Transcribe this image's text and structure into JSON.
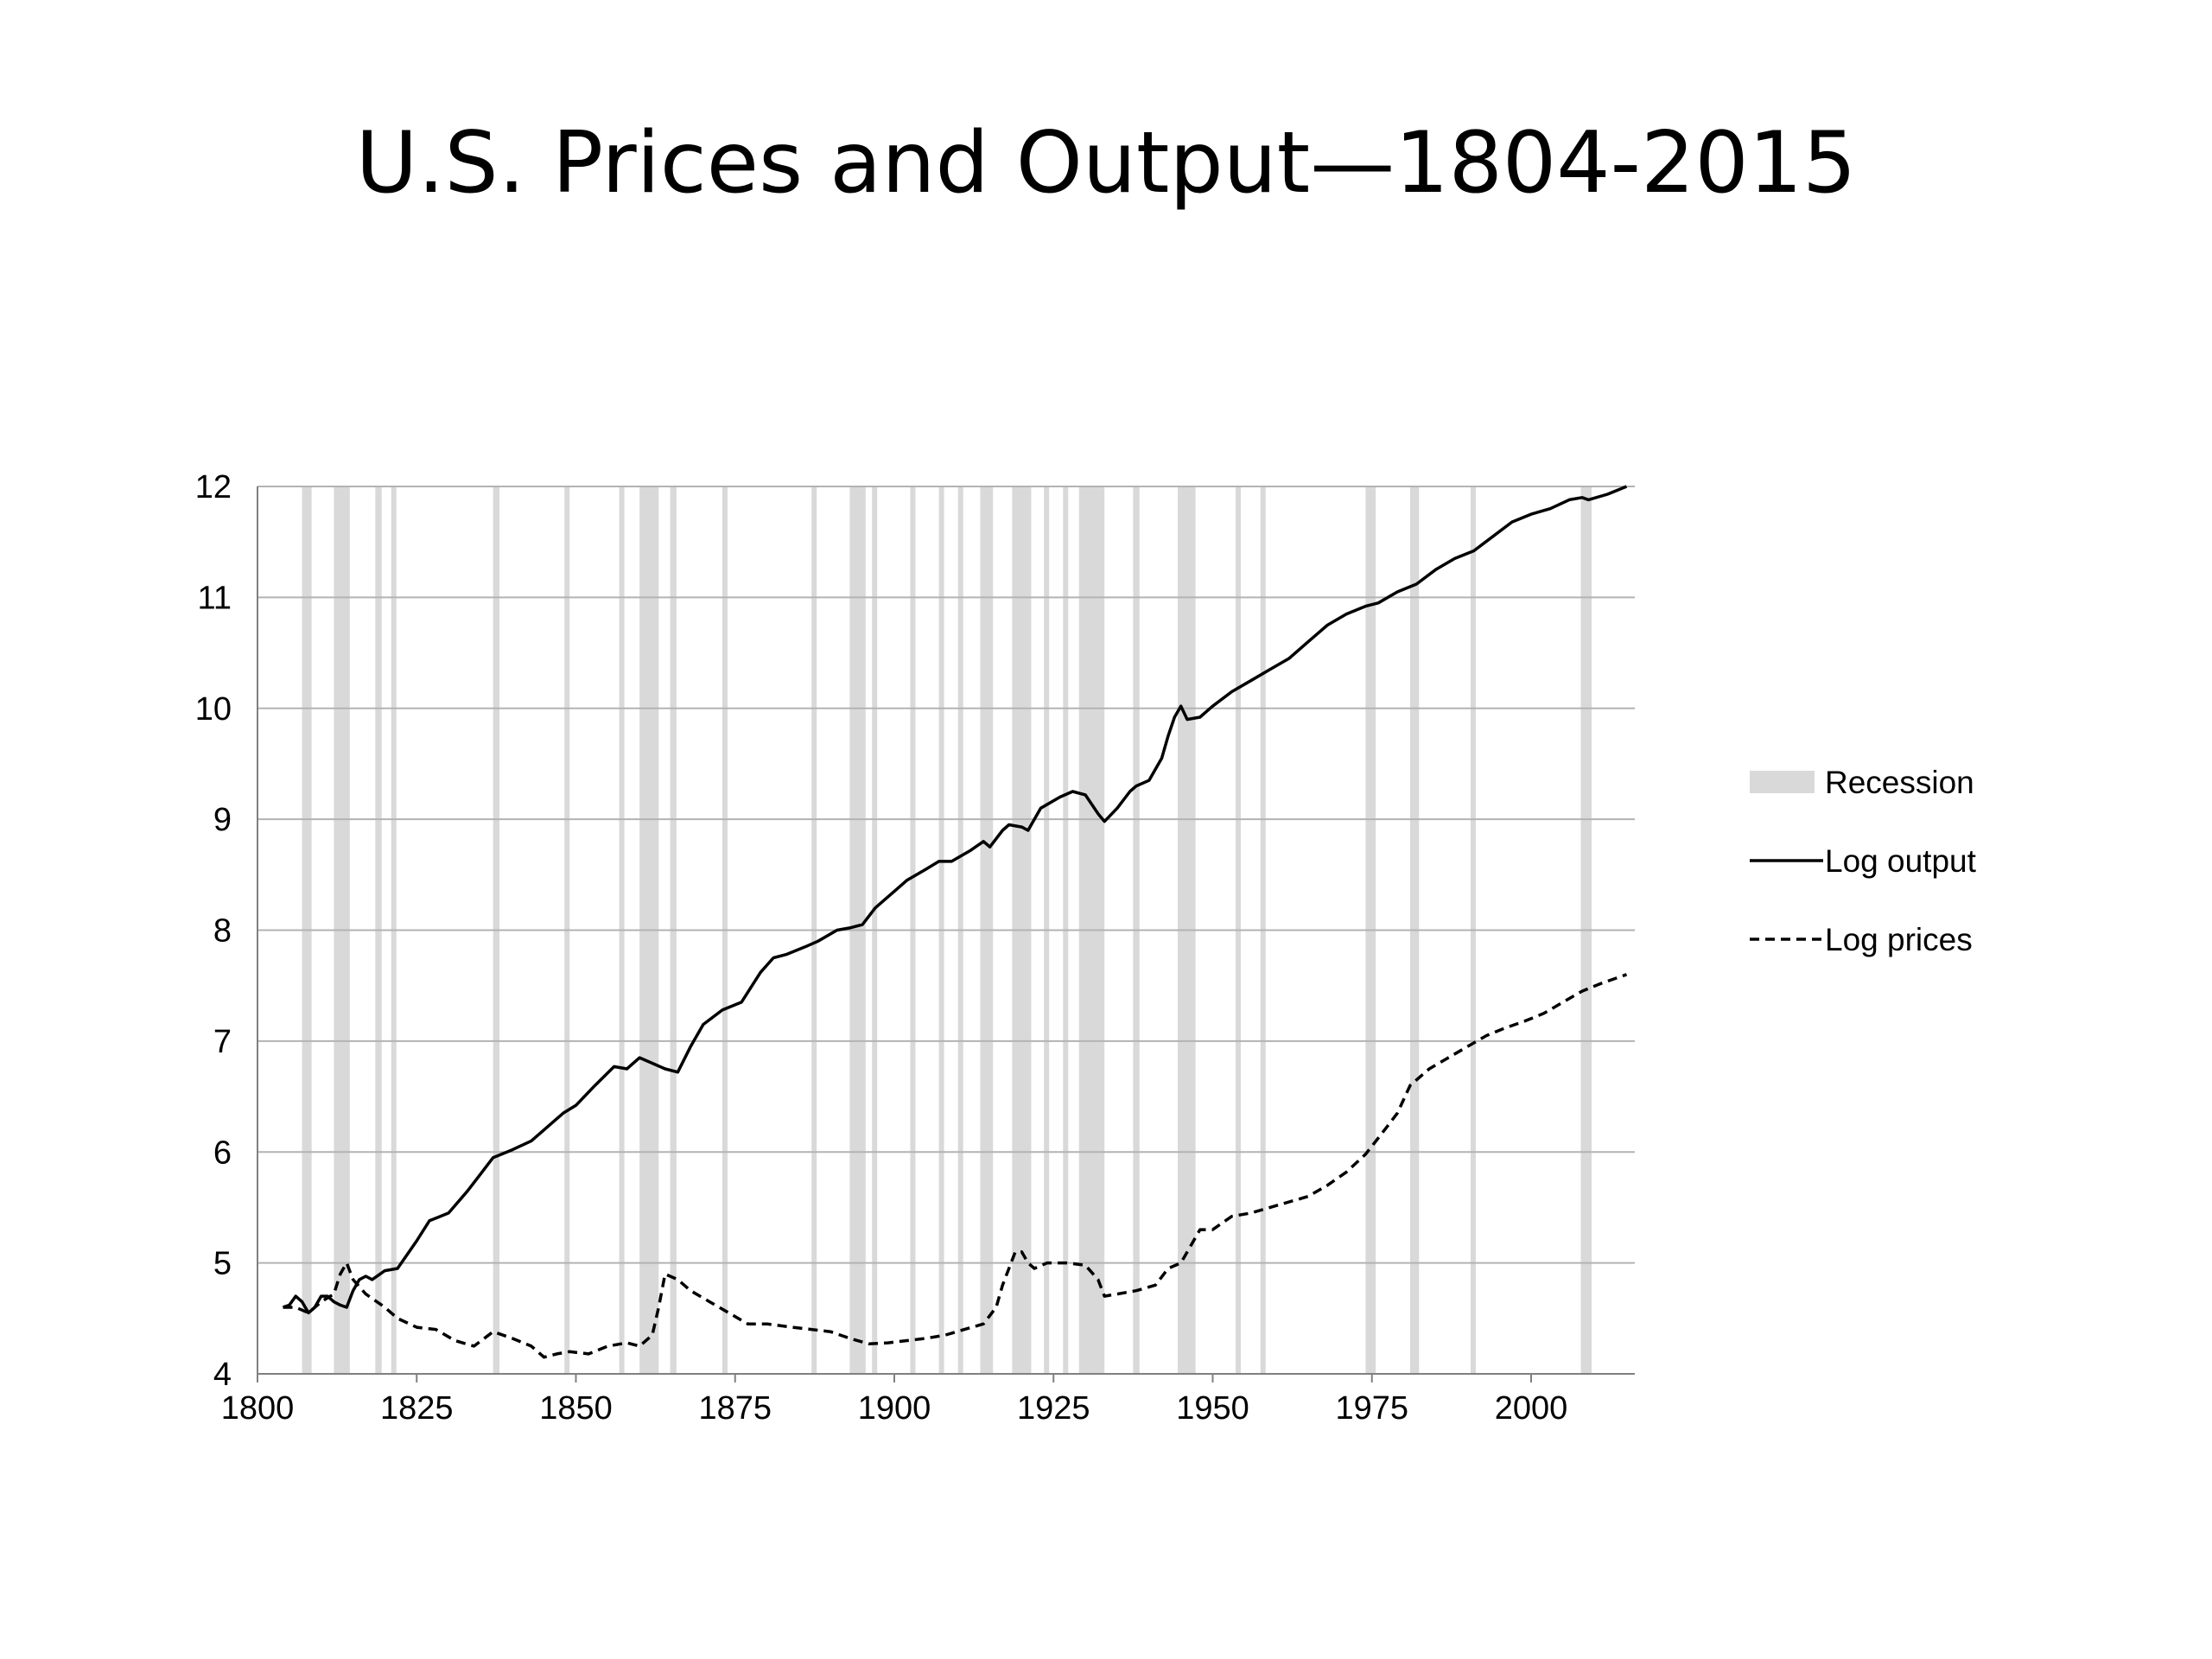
{
  "page_title": "U.S. Prices and Output—1804-2015",
  "chart_data": {
    "type": "line",
    "title": "U.S. Prices and Output—1804-2015",
    "xlabel": "",
    "ylabel": "",
    "xlim": [
      1800,
      2016
    ],
    "ylim": [
      4,
      12
    ],
    "x_ticks": [
      1800,
      1825,
      1850,
      1875,
      1900,
      1925,
      1950,
      1975,
      2000
    ],
    "y_ticks": [
      4,
      5,
      6,
      7,
      8,
      9,
      10,
      11,
      12
    ],
    "grid": "horizontal",
    "legend_position": "right",
    "legend": [
      "Recession",
      "Log output",
      "Log prices"
    ],
    "recessions": [
      [
        1807,
        1808.5
      ],
      [
        1812,
        1814.5
      ],
      [
        1818.5,
        1819.5
      ],
      [
        1821,
        1821.8
      ],
      [
        1837,
        1838
      ],
      [
        1848.2,
        1849
      ],
      [
        1856.8,
        1857.6
      ],
      [
        1860,
        1863
      ],
      [
        1864.8,
        1865.8
      ],
      [
        1873,
        1873.8
      ],
      [
        1887,
        1887.8
      ],
      [
        1893,
        1895.5
      ],
      [
        1896.5,
        1897.3
      ],
      [
        1902.5,
        1903.3
      ],
      [
        1907,
        1907.8
      ],
      [
        1910,
        1910.8
      ],
      [
        1913.5,
        1915.5
      ],
      [
        1918.5,
        1921.5
      ],
      [
        1923.5,
        1924.3
      ],
      [
        1926.5,
        1927.3
      ],
      [
        1929,
        1933
      ],
      [
        1937.5,
        1938.5
      ],
      [
        1944.5,
        1947.3
      ],
      [
        1953.6,
        1954.4
      ],
      [
        1957.5,
        1958.3
      ],
      [
        1974,
        1975.6
      ],
      [
        1981,
        1982.4
      ],
      [
        1990.5,
        1991.3
      ],
      [
        2007.8,
        2009.5
      ]
    ],
    "series": [
      {
        "name": "Log output",
        "style": "solid",
        "color": "#000000",
        "x": [
          1804,
          1805,
          1806,
          1807,
          1808,
          1809,
          1810,
          1811,
          1812,
          1813,
          1814,
          1815,
          1816,
          1817,
          1818,
          1820,
          1822,
          1825,
          1827,
          1830,
          1833,
          1835,
          1837,
          1840,
          1843,
          1846,
          1848,
          1850,
          1853,
          1856,
          1858,
          1860,
          1862,
          1864,
          1866,
          1868,
          1870,
          1873,
          1876,
          1879,
          1881,
          1883,
          1886,
          1888,
          1891,
          1893,
          1895,
          1897,
          1900,
          1902,
          1905,
          1907,
          1909,
          1912,
          1914,
          1915,
          1917,
          1918,
          1920,
          1921,
          1923,
          1926,
          1928,
          1930,
          1932,
          1933,
          1935,
          1937,
          1938,
          1940,
          1942,
          1943,
          1944,
          1945,
          1946,
          1948,
          1950,
          1953,
          1956,
          1959,
          1962,
          1965,
          1968,
          1971,
          1974,
          1976,
          1979,
          1982,
          1985,
          1988,
          1991,
          1994,
          1997,
          2000,
          2003,
          2006,
          2008,
          2009,
          2012,
          2015
        ],
        "values": [
          4.6,
          4.62,
          4.7,
          4.65,
          4.55,
          4.6,
          4.7,
          4.7,
          4.65,
          4.62,
          4.6,
          4.75,
          4.85,
          4.88,
          4.85,
          4.93,
          4.95,
          5.2,
          5.38,
          5.45,
          5.65,
          5.8,
          5.95,
          6.02,
          6.1,
          6.25,
          6.35,
          6.42,
          6.6,
          6.77,
          6.75,
          6.85,
          6.8,
          6.75,
          6.72,
          6.95,
          7.15,
          7.28,
          7.35,
          7.62,
          7.75,
          7.78,
          7.85,
          7.9,
          8.0,
          8.02,
          8.05,
          8.2,
          8.35,
          8.45,
          8.55,
          8.62,
          8.62,
          8.72,
          8.8,
          8.75,
          8.9,
          8.95,
          8.93,
          8.9,
          9.1,
          9.2,
          9.25,
          9.22,
          9.05,
          8.98,
          9.1,
          9.25,
          9.3,
          9.35,
          9.55,
          9.75,
          9.92,
          10.02,
          9.9,
          9.92,
          10.02,
          10.15,
          10.25,
          10.35,
          10.45,
          10.6,
          10.75,
          10.85,
          10.92,
          10.95,
          11.05,
          11.12,
          11.25,
          11.35,
          11.42,
          11.55,
          11.68,
          11.75,
          11.8,
          11.88,
          11.9,
          11.88,
          11.93,
          12.0
        ]
      },
      {
        "name": "Log prices",
        "style": "dashed",
        "color": "#000000",
        "x": [
          1804,
          1806,
          1808,
          1810,
          1812,
          1813,
          1814,
          1815,
          1817,
          1820,
          1822,
          1825,
          1828,
          1831,
          1834,
          1837,
          1840,
          1843,
          1845,
          1847,
          1849,
          1852,
          1855,
          1858,
          1860,
          1862,
          1863,
          1864,
          1866,
          1868,
          1871,
          1874,
          1877,
          1880,
          1884,
          1887,
          1890,
          1893,
          1896,
          1899,
          1902,
          1905,
          1908,
          1911,
          1914,
          1916,
          1917,
          1918,
          1919,
          1920,
          1921,
          1922,
          1924,
          1927,
          1930,
          1932,
          1933,
          1935,
          1938,
          1941,
          1943,
          1945,
          1947,
          1948,
          1950,
          1953,
          1956,
          1959,
          1962,
          1965,
          1968,
          1971,
          1974,
          1977,
          1979,
          1981,
          1984,
          1987,
          1990,
          1993,
          1996,
          1999,
          2002,
          2005,
          2008,
          2011,
          2015
        ],
        "values": [
          4.6,
          4.6,
          4.55,
          4.65,
          4.72,
          4.9,
          5.0,
          4.85,
          4.72,
          4.6,
          4.5,
          4.42,
          4.4,
          4.3,
          4.25,
          4.38,
          4.32,
          4.25,
          4.15,
          4.18,
          4.2,
          4.18,
          4.25,
          4.28,
          4.25,
          4.35,
          4.6,
          4.9,
          4.85,
          4.75,
          4.65,
          4.55,
          4.45,
          4.45,
          4.42,
          4.4,
          4.38,
          4.32,
          4.27,
          4.28,
          4.3,
          4.32,
          4.35,
          4.4,
          4.45,
          4.6,
          4.8,
          4.95,
          5.1,
          5.1,
          5.0,
          4.95,
          5.0,
          5.0,
          4.98,
          4.85,
          4.7,
          4.72,
          4.75,
          4.8,
          4.95,
          5.0,
          5.2,
          5.3,
          5.3,
          5.42,
          5.45,
          5.5,
          5.55,
          5.6,
          5.7,
          5.82,
          5.98,
          6.2,
          6.35,
          6.6,
          6.75,
          6.85,
          6.95,
          7.05,
          7.12,
          7.18,
          7.25,
          7.35,
          7.45,
          7.52,
          7.6
        ]
      }
    ]
  },
  "colors": {
    "recession": "#d9d9d9",
    "grid": "#b3b3b3",
    "axis": "#808080",
    "line": "#000000"
  }
}
